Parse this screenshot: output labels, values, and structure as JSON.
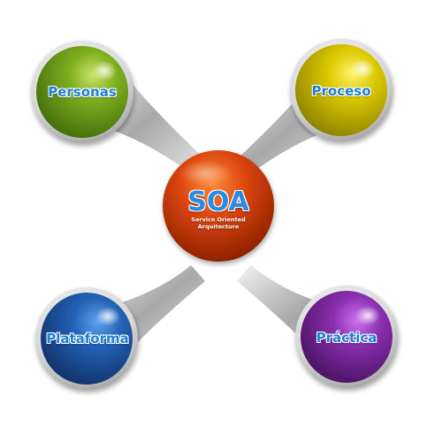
{
  "center": {
    "title": "SOA",
    "subtitle_line1": "Service Oriented",
    "subtitle_line2": "Arquitecture",
    "color": "#d23c04"
  },
  "nodes": [
    {
      "label": "Personas",
      "color": "#6b9a1c",
      "position": "top-left"
    },
    {
      "label": "Proceso",
      "color": "#d6c400",
      "position": "top-right"
    },
    {
      "label": "Plataforma",
      "color": "#1e5aa8",
      "position": "bottom-left"
    },
    {
      "label": "Práctica",
      "color": "#7a2a9e",
      "position": "bottom-right"
    }
  ],
  "colors": {
    "label_text": "#1f7ed1",
    "connector": "#b5b5b5",
    "ring": "#d9d9d9"
  }
}
